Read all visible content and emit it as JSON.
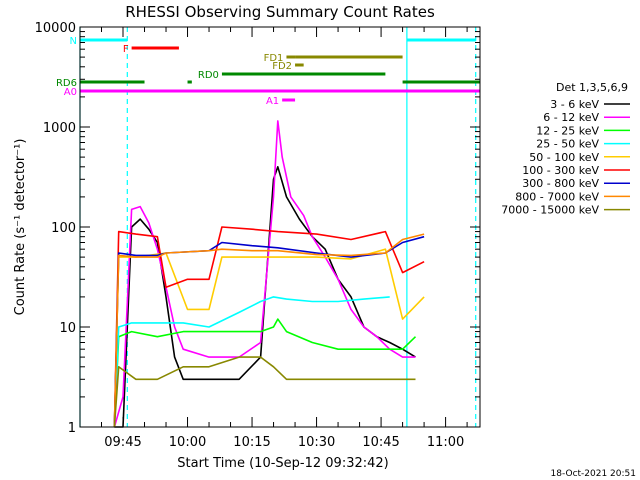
{
  "chart_data": {
    "type": "line",
    "title": "RHESSI Observing Summary Count Rates",
    "xlabel": "Start Time (10-Sep-12 09:32:42)",
    "ylabel": "Count Rate (s⁻¹ detector⁻¹)",
    "y_scale": "log",
    "ylim": [
      1,
      10000
    ],
    "xlim": [
      "09:35",
      "11:08"
    ],
    "x_ticks": [
      "09:45",
      "10:00",
      "10:15",
      "10:30",
      "10:45",
      "11:00"
    ],
    "y_ticks": [
      "1",
      "10",
      "100",
      "1000",
      "10000"
    ],
    "grid": false,
    "legend_title": "Det 1,3,5,6,9",
    "legend_placement": "right",
    "timestamp": "18-Oct-2021 20:51",
    "series": [
      {
        "name": "3 - 6 keV",
        "color": "#000000",
        "points": [
          [
            "09:43",
            1
          ],
          [
            "09:45",
            1
          ],
          [
            "09:47",
            100
          ],
          [
            "09:49",
            120
          ],
          [
            "09:51",
            95
          ],
          [
            "09:53",
            70
          ],
          [
            "09:55",
            20
          ],
          [
            "09:57",
            5
          ],
          [
            "09:59",
            3
          ],
          [
            "10:05",
            3
          ],
          [
            "10:12",
            3
          ],
          [
            "10:17",
            5
          ],
          [
            "10:20",
            300
          ],
          [
            "10:21",
            400
          ],
          [
            "10:23",
            200
          ],
          [
            "10:26",
            120
          ],
          [
            "10:29",
            80
          ],
          [
            "10:32",
            60
          ],
          [
            "10:35",
            30
          ],
          [
            "10:38",
            20
          ],
          [
            "10:41",
            10
          ],
          [
            "10:44",
            8
          ],
          [
            "10:47",
            7
          ],
          [
            "10:50",
            6
          ],
          [
            "10:53",
            5
          ]
        ]
      },
      {
        "name": "6 - 12 keV",
        "color": "#ff00ff",
        "points": [
          [
            "09:43",
            1
          ],
          [
            "09:45",
            2
          ],
          [
            "09:47",
            150
          ],
          [
            "09:49",
            160
          ],
          [
            "09:51",
            110
          ],
          [
            "09:53",
            60
          ],
          [
            "09:55",
            25
          ],
          [
            "09:57",
            10
          ],
          [
            "09:59",
            6
          ],
          [
            "10:05",
            5
          ],
          [
            "10:12",
            5
          ],
          [
            "10:17",
            7
          ],
          [
            "10:20",
            200
          ],
          [
            "10:21",
            1150
          ],
          [
            "10:22",
            500
          ],
          [
            "10:24",
            200
          ],
          [
            "10:27",
            130
          ],
          [
            "10:29",
            80
          ],
          [
            "10:32",
            50
          ],
          [
            "10:35",
            30
          ],
          [
            "10:38",
            15
          ],
          [
            "10:41",
            10
          ],
          [
            "10:44",
            8
          ],
          [
            "10:47",
            6
          ],
          [
            "10:50",
            5
          ],
          [
            "10:53",
            5
          ]
        ]
      },
      {
        "name": "12 - 25 keV",
        "color": "#00ff00",
        "points": [
          [
            "09:43",
            1
          ],
          [
            "09:44",
            8
          ],
          [
            "09:47",
            9
          ],
          [
            "09:53",
            8
          ],
          [
            "09:59",
            9
          ],
          [
            "10:05",
            9
          ],
          [
            "10:12",
            9
          ],
          [
            "10:17",
            9
          ],
          [
            "10:20",
            10
          ],
          [
            "10:21",
            12
          ],
          [
            "10:23",
            9
          ],
          [
            "10:29",
            7
          ],
          [
            "10:35",
            6
          ],
          [
            "10:41",
            6
          ],
          [
            "10:47",
            6
          ],
          [
            "10:50",
            6
          ],
          [
            "10:53",
            8
          ]
        ]
      },
      {
        "name": "25 - 50 keV",
        "color": "#00ffff",
        "points": [
          [
            "09:43",
            1
          ],
          [
            "09:44",
            10
          ],
          [
            "09:47",
            11
          ],
          [
            "09:59",
            11
          ],
          [
            "10:05",
            10
          ],
          [
            "10:12",
            14
          ],
          [
            "10:17",
            18
          ],
          [
            "10:20",
            20
          ],
          [
            "10:23",
            19
          ],
          [
            "10:29",
            18
          ],
          [
            "10:35",
            18
          ],
          [
            "10:41",
            19
          ],
          [
            "10:47",
            20
          ]
        ]
      },
      {
        "name": "50 - 100 keV",
        "color": "#ffcc00",
        "points": [
          [
            "09:43",
            1
          ],
          [
            "09:44",
            50
          ],
          [
            "09:48",
            50
          ],
          [
            "09:55",
            55
          ],
          [
            "10:00",
            15
          ],
          [
            "10:05",
            15
          ],
          [
            "10:08",
            50
          ],
          [
            "10:15",
            50
          ],
          [
            "10:21",
            50
          ],
          [
            "10:30",
            50
          ],
          [
            "10:38",
            48
          ],
          [
            "10:46",
            60
          ],
          [
            "10:50",
            12
          ],
          [
            "10:55",
            20
          ]
        ]
      },
      {
        "name": "100 - 300 keV",
        "color": "#ff0000",
        "points": [
          [
            "09:43",
            1
          ],
          [
            "09:44",
            90
          ],
          [
            "09:48",
            85
          ],
          [
            "09:53",
            80
          ],
          [
            "09:55",
            25
          ],
          [
            "10:00",
            30
          ],
          [
            "10:05",
            30
          ],
          [
            "10:08",
            100
          ],
          [
            "10:15",
            95
          ],
          [
            "10:21",
            90
          ],
          [
            "10:30",
            85
          ],
          [
            "10:38",
            75
          ],
          [
            "10:46",
            90
          ],
          [
            "10:50",
            35
          ],
          [
            "10:55",
            45
          ]
        ]
      },
      {
        "name": "300 - 800 keV",
        "color": "#0000cc",
        "points": [
          [
            "09:43",
            1
          ],
          [
            "09:44",
            55
          ],
          [
            "09:48",
            52
          ],
          [
            "09:53",
            52
          ],
          [
            "09:55",
            55
          ],
          [
            "10:05",
            58
          ],
          [
            "10:08",
            70
          ],
          [
            "10:15",
            65
          ],
          [
            "10:21",
            62
          ],
          [
            "10:30",
            55
          ],
          [
            "10:38",
            50
          ],
          [
            "10:46",
            55
          ],
          [
            "10:50",
            70
          ],
          [
            "10:55",
            80
          ]
        ]
      },
      {
        "name": "800 - 7000 keV",
        "color": "#ff8800",
        "points": [
          [
            "09:43",
            1
          ],
          [
            "09:44",
            52
          ],
          [
            "09:48",
            50
          ],
          [
            "09:53",
            50
          ],
          [
            "09:55",
            55
          ],
          [
            "10:05",
            58
          ],
          [
            "10:08",
            60
          ],
          [
            "10:15",
            58
          ],
          [
            "10:21",
            58
          ],
          [
            "10:30",
            53
          ],
          [
            "10:38",
            52
          ],
          [
            "10:46",
            55
          ],
          [
            "10:50",
            75
          ],
          [
            "10:55",
            85
          ]
        ]
      },
      {
        "name": "7000 - 15000 keV",
        "color": "#888800",
        "points": [
          [
            "09:43",
            1
          ],
          [
            "09:44",
            4
          ],
          [
            "09:48",
            3
          ],
          [
            "09:53",
            3
          ],
          [
            "09:59",
            4
          ],
          [
            "10:05",
            4
          ],
          [
            "10:12",
            5
          ],
          [
            "10:17",
            5
          ],
          [
            "10:20",
            4
          ],
          [
            "10:23",
            3
          ],
          [
            "10:29",
            3
          ],
          [
            "10:35",
            3
          ],
          [
            "10:41",
            3
          ],
          [
            "10:47",
            3
          ],
          [
            "10:50",
            3
          ],
          [
            "10:53",
            3
          ]
        ]
      }
    ],
    "flags": [
      {
        "label": "N",
        "color": "#00ffff",
        "segments": [
          [
            "09:35",
            "09:46"
          ],
          [
            "10:51",
            "11:07"
          ]
        ]
      },
      {
        "label": "F",
        "color": "#ff0000",
        "segments": [
          [
            "09:47",
            "09:58"
          ]
        ]
      },
      {
        "label": "FD1",
        "color": "#888800",
        "segments": [
          [
            "10:23",
            "10:25"
          ],
          [
            "10:25",
            "10:50"
          ]
        ]
      },
      {
        "label": "FD2",
        "color": "#888800",
        "segments": [
          [
            "10:25",
            "10:27"
          ]
        ]
      },
      {
        "label": "RD0",
        "color": "#008800",
        "segments": [
          [
            "10:08",
            "10:46"
          ]
        ]
      },
      {
        "label": "RD6",
        "color": "#008800",
        "segments": [
          [
            "09:35",
            "09:50"
          ],
          [
            "10:00",
            "10:01"
          ],
          [
            "10:50",
            "11:08"
          ]
        ]
      },
      {
        "label": "A0",
        "color": "#ff00ff",
        "segments": [
          [
            "09:35",
            "11:08"
          ]
        ]
      },
      {
        "label": "A1",
        "color": "#ff00ff",
        "segments": [
          [
            "10:22",
            "10:25"
          ]
        ]
      }
    ],
    "vertical_markers": {
      "color": "#00ffff",
      "solid": [
        "09:35",
        "10:51"
      ],
      "dashed": [
        "09:46",
        "11:07"
      ]
    }
  }
}
